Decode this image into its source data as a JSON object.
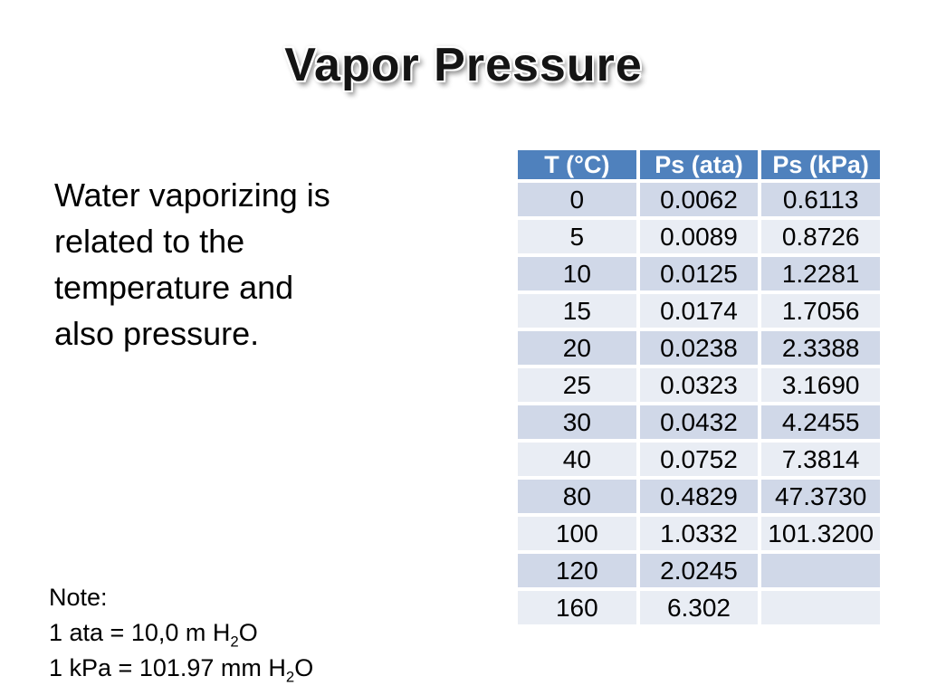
{
  "slide": {
    "title": "Vapor Pressure",
    "body_lines": [
      "Water vaporizing is",
      "related to the",
      "temperature and",
      "also pressure."
    ],
    "note": {
      "label": "Note:",
      "line1": {
        "pre": "1 ata = 10,0 m H",
        "sub": "2",
        "post": "O"
      },
      "line2": {
        "pre": "1 kPa = 101.97 mm H",
        "sub": "2",
        "post": "O"
      }
    }
  },
  "table": {
    "headers": [
      "T (°C)",
      "Ps (ata)",
      "Ps (kPa)"
    ],
    "rows": [
      [
        "0",
        "0.0062",
        "0.6113"
      ],
      [
        "5",
        "0.0089",
        "0.8726"
      ],
      [
        "10",
        "0.0125",
        "1.2281"
      ],
      [
        "15",
        "0.0174",
        "1.7056"
      ],
      [
        "20",
        "0.0238",
        "2.3388"
      ],
      [
        "25",
        "0.0323",
        "3.1690"
      ],
      [
        "30",
        "0.0432",
        "4.2455"
      ],
      [
        "40",
        "0.0752",
        "7.3814"
      ],
      [
        "80",
        "0.4829",
        "47.3730"
      ],
      [
        "100",
        "1.0332",
        "101.3200"
      ],
      [
        "120",
        "2.0245",
        ""
      ],
      [
        "160",
        "6.302",
        ""
      ]
    ],
    "colors": {
      "header_bg": "#4F81BD",
      "header_text": "#FFFFFF",
      "band_dark": "#D0D8E8",
      "band_light": "#E9EDF4",
      "cell_text": "#000000"
    }
  }
}
